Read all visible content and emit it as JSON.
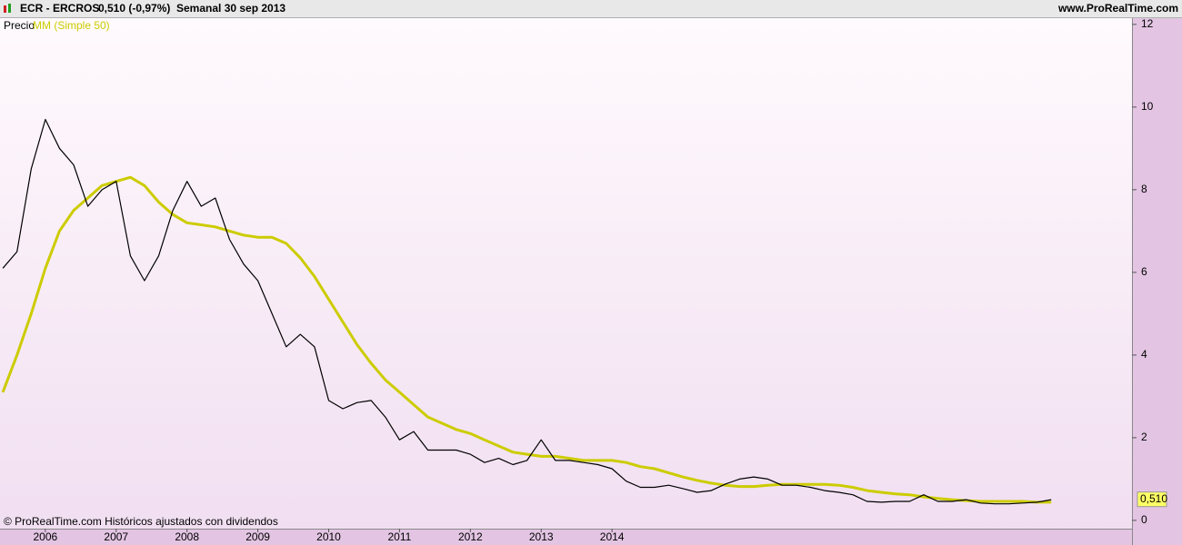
{
  "header": {
    "symbol": "ECR - ERCROS",
    "quote": "0,510 (-0,97%)",
    "period": "Semanal  30 sep 2013",
    "site": "www.ProRealTime.com"
  },
  "footer": "© ProRealTime.com  Históricos ajustados con dividendos",
  "chart_data": {
    "type": "line",
    "legend_label": "Precio",
    "x": [
      2005.4,
      2005.6,
      2005.8,
      2006.0,
      2006.2,
      2006.4,
      2006.6,
      2006.8,
      2007.0,
      2007.2,
      2007.4,
      2007.6,
      2007.8,
      2008.0,
      2008.2,
      2008.4,
      2008.6,
      2008.8,
      2009.0,
      2009.2,
      2009.4,
      2009.6,
      2009.8,
      2010.0,
      2010.2,
      2010.4,
      2010.6,
      2010.8,
      2011.0,
      2011.2,
      2011.4,
      2011.6,
      2011.8,
      2012.0,
      2012.2,
      2012.4,
      2012.6,
      2012.8,
      2013.0,
      2013.2,
      2013.4,
      2013.6,
      2013.8,
      2014.0,
      2014.2,
      2014.4,
      2014.6,
      2014.8,
      2015.0,
      2015.2,
      2015.4,
      2015.6,
      2015.8,
      2016.0,
      2016.2,
      2016.4,
      2016.6,
      2016.8,
      2017.0,
      2017.2,
      2017.4,
      2017.6,
      2017.8,
      2018.0,
      2018.2,
      2018.4,
      2018.6,
      2018.8,
      2019.0,
      2019.2,
      2019.4,
      2019.6,
      2019.8,
      2020.0,
      2020.2
    ],
    "series": [
      {
        "name": "",
        "color": "#000000",
        "values": [
          6.1,
          6.5,
          8.5,
          9.7,
          9.0,
          8.6,
          7.6,
          8.0,
          8.2,
          6.4,
          5.8,
          6.4,
          7.5,
          8.2,
          7.6,
          7.8,
          6.8,
          6.2,
          5.8,
          5.0,
          4.2,
          4.5,
          4.2,
          2.9,
          2.7,
          2.85,
          2.9,
          2.5,
          1.95,
          2.15,
          1.7,
          1.7,
          1.7,
          1.6,
          1.4,
          1.5,
          1.35,
          1.45,
          1.95,
          1.45,
          1.45,
          1.4,
          1.35,
          1.25,
          0.95,
          0.8,
          0.8,
          0.85,
          0.77,
          0.68,
          0.72,
          0.88,
          1.0,
          1.05,
          1.0,
          0.85,
          0.85,
          0.8,
          0.72,
          0.68,
          0.62,
          0.46,
          0.44,
          0.46,
          0.46,
          0.62,
          0.46,
          0.46,
          0.5,
          0.42,
          0.4,
          0.4,
          0.42,
          0.44,
          0.5
        ]
      },
      {
        "name": "MM (Simple 50)",
        "color": "#cccc00",
        "values": [
          3.1,
          4.0,
          5.0,
          6.1,
          7.0,
          7.5,
          7.8,
          8.1,
          8.2,
          8.3,
          8.1,
          7.7,
          7.4,
          7.2,
          7.15,
          7.1,
          7.0,
          6.9,
          6.85,
          6.85,
          6.7,
          6.35,
          5.9,
          5.35,
          4.8,
          4.25,
          3.8,
          3.4,
          3.1,
          2.8,
          2.5,
          2.35,
          2.2,
          2.1,
          1.95,
          1.8,
          1.65,
          1.6,
          1.55,
          1.55,
          1.5,
          1.45,
          1.45,
          1.45,
          1.4,
          1.3,
          1.25,
          1.15,
          1.05,
          0.97,
          0.9,
          0.85,
          0.82,
          0.82,
          0.85,
          0.87,
          0.87,
          0.87,
          0.87,
          0.85,
          0.8,
          0.72,
          0.68,
          0.64,
          0.62,
          0.57,
          0.53,
          0.5,
          0.48,
          0.46,
          0.46,
          0.46,
          0.46,
          0.44,
          0.44
        ]
      }
    ],
    "last_value": {
      "value": 0.51,
      "label": "0,510"
    },
    "xlim": [
      2005.36,
      2021.34
    ],
    "xticks": [
      2006,
      2007,
      2008,
      2009,
      2010,
      2011,
      2012,
      2013,
      2014
    ],
    "ylim": [
      -0.2,
      12.15
    ],
    "yticks": [
      0,
      2,
      4,
      6,
      8,
      10,
      12
    ],
    "grid": false
  }
}
